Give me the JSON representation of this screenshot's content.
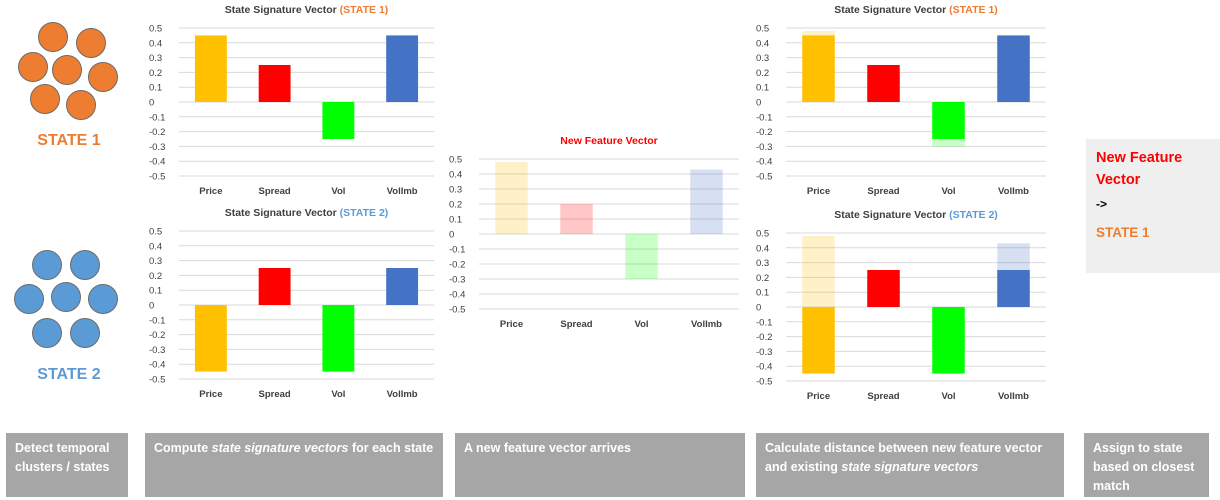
{
  "clusters": [
    {
      "label": "STATE 1",
      "color": "#ed7d31"
    },
    {
      "label": "STATE 2",
      "color": "#5b9bd5"
    }
  ],
  "chart_data": [
    {
      "id": "sig1",
      "type": "bar",
      "title": "State Signature Vector ",
      "title_state": "(STATE 1)",
      "title_state_color": "#ed7d31",
      "categories": [
        "Price",
        "Spread",
        "Vol",
        "VolImb"
      ],
      "series": [
        {
          "values": [
            0.45,
            0.25,
            -0.25,
            0.45
          ],
          "colors": [
            "#ffc000",
            "#ff0000",
            "#00ff00",
            "#4472c4"
          ],
          "opacity": 1
        }
      ],
      "ylim": [
        -0.5,
        0.5
      ],
      "yticks": [
        "0.5",
        "0.4",
        "0.3",
        "0.2",
        "0.1",
        "0",
        "-0.1",
        "-0.2",
        "-0.3",
        "-0.4",
        "-0.5"
      ],
      "grid": true
    },
    {
      "id": "sig2",
      "type": "bar",
      "title": "State Signature Vector ",
      "title_state": "(STATE 2)",
      "title_state_color": "#5b9bd5",
      "categories": [
        "Price",
        "Spread",
        "Vol",
        "VolImb"
      ],
      "series": [
        {
          "values": [
            -0.45,
            0.25,
            -0.45,
            0.25
          ],
          "colors": [
            "#ffc000",
            "#ff0000",
            "#00ff00",
            "#4472c4"
          ],
          "opacity": 1
        }
      ],
      "ylim": [
        -0.5,
        0.5
      ],
      "yticks": [
        "0.5",
        "0.4",
        "0.3",
        "0.2",
        "0.1",
        "0",
        "-0.1",
        "-0.2",
        "-0.3",
        "-0.4",
        "-0.5"
      ],
      "grid": true
    },
    {
      "id": "newvec",
      "type": "bar",
      "title": "New Feature Vector",
      "title_color": "#ff0000",
      "categories": [
        "Price",
        "Spread",
        "Vol",
        "VolImb"
      ],
      "series": [
        {
          "values": [
            0.48,
            0.2,
            -0.3,
            0.43
          ],
          "colors": [
            "#ffc000",
            "#ff0000",
            "#00ff00",
            "#4472c4"
          ],
          "opacity": 0.22
        }
      ],
      "ylim": [
        -0.5,
        0.5
      ],
      "yticks": [
        "0.5",
        "0.4",
        "0.3",
        "0.2",
        "0.1",
        "0",
        "-0.1",
        "-0.2",
        "-0.3",
        "-0.4",
        "-0.5"
      ],
      "grid": true
    },
    {
      "id": "cmp1",
      "type": "bar",
      "title": "State Signature Vector ",
      "title_state": "(STATE 1)",
      "title_state_color": "#ed7d31",
      "categories": [
        "Price",
        "Spread",
        "Vol",
        "VolImb"
      ],
      "series": [
        {
          "values": [
            0.48,
            0.2,
            -0.3,
            0.43
          ],
          "colors": [
            "#ffc000",
            "#ff0000",
            "#00ff00",
            "#4472c4"
          ],
          "opacity": 0.22
        },
        {
          "values": [
            0.45,
            0.25,
            -0.25,
            0.45
          ],
          "colors": [
            "#ffc000",
            "#ff0000",
            "#00ff00",
            "#4472c4"
          ],
          "opacity": 1
        }
      ],
      "ylim": [
        -0.5,
        0.5
      ],
      "yticks": [
        "0.5",
        "0.4",
        "0.3",
        "0.2",
        "0.1",
        "0",
        "-0.1",
        "-0.2",
        "-0.3",
        "-0.4",
        "-0.5"
      ],
      "grid": true
    },
    {
      "id": "cmp2",
      "type": "bar",
      "title": "State Signature Vector ",
      "title_state": "(STATE 2)",
      "title_state_color": "#5b9bd5",
      "categories": [
        "Price",
        "Spread",
        "Vol",
        "VolImb"
      ],
      "series": [
        {
          "values": [
            0.48,
            0.2,
            -0.3,
            0.43
          ],
          "colors": [
            "#ffc000",
            "#ff0000",
            "#00ff00",
            "#4472c4"
          ],
          "opacity": 0.22
        },
        {
          "values": [
            -0.45,
            0.25,
            -0.45,
            0.25
          ],
          "colors": [
            "#ffc000",
            "#ff0000",
            "#00ff00",
            "#4472c4"
          ],
          "opacity": 1
        }
      ],
      "ylim": [
        -0.5,
        0.5
      ],
      "yticks": [
        "0.5",
        "0.4",
        "0.3",
        "0.2",
        "0.1",
        "0",
        "-0.1",
        "-0.2",
        "-0.3",
        "-0.4",
        "-0.5"
      ],
      "grid": true
    }
  ],
  "result": {
    "title": "New Feature Vector",
    "arrow": "->",
    "state": "STATE 1"
  },
  "steps": {
    "s1": "Detect temporal clusters / states",
    "s2_pre": "Compute ",
    "s2_em": "state signature vectors",
    "s2_post": " for each state",
    "s3": "A new feature vector arrives",
    "s4_pre": "Calculate distance between new feature vector and existing ",
    "s4_em": "state signature vectors",
    "s5": "Assign to state based on closest match"
  }
}
